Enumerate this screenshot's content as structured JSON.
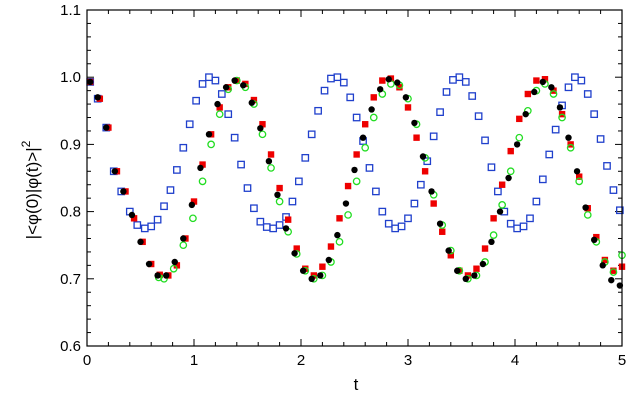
{
  "chart_data": {
    "type": "scatter",
    "title": "",
    "xlabel": "t",
    "ylabel": "|<φ(0)|φ(t)>|",
    "ylabel_superscript": "2",
    "xlim": [
      0,
      5
    ],
    "ylim": [
      0.6,
      1.1
    ],
    "xticks": [
      "0",
      "1",
      "2",
      "3",
      "4",
      "5"
    ],
    "yticks": [
      "0.6",
      "0.7",
      "0.8",
      "0.9",
      "1.0",
      "1.1"
    ],
    "grid": false,
    "legend": "none",
    "series": [
      {
        "marker": "filled-circle",
        "color": "#000000",
        "points": [
          [
            0.03,
            0.993
          ],
          [
            0.1,
            0.97
          ],
          [
            0.18,
            0.925
          ],
          [
            0.26,
            0.86
          ],
          [
            0.34,
            0.83
          ],
          [
            0.42,
            0.795
          ],
          [
            0.5,
            0.755
          ],
          [
            0.58,
            0.722
          ],
          [
            0.66,
            0.705
          ],
          [
            0.74,
            0.705
          ],
          [
            0.82,
            0.725
          ],
          [
            0.9,
            0.76
          ],
          [
            0.98,
            0.81
          ],
          [
            1.06,
            0.865
          ],
          [
            1.14,
            0.915
          ],
          [
            1.22,
            0.96
          ],
          [
            1.3,
            0.985
          ],
          [
            1.38,
            0.995
          ],
          [
            1.46,
            0.988
          ],
          [
            1.54,
            0.962
          ],
          [
            1.62,
            0.924
          ],
          [
            1.7,
            0.875
          ],
          [
            1.78,
            0.825
          ],
          [
            1.86,
            0.775
          ],
          [
            1.94,
            0.738
          ],
          [
            2.02,
            0.712
          ],
          [
            2.1,
            0.7
          ],
          [
            2.18,
            0.705
          ],
          [
            2.26,
            0.728
          ],
          [
            2.34,
            0.765
          ],
          [
            2.42,
            0.812
          ],
          [
            2.5,
            0.862
          ],
          [
            2.58,
            0.91
          ],
          [
            2.66,
            0.952
          ],
          [
            2.74,
            0.982
          ],
          [
            2.82,
            0.997
          ],
          [
            2.9,
            0.992
          ],
          [
            2.98,
            0.97
          ],
          [
            3.06,
            0.932
          ],
          [
            3.14,
            0.882
          ],
          [
            3.22,
            0.83
          ],
          [
            3.3,
            0.782
          ],
          [
            3.38,
            0.742
          ],
          [
            3.46,
            0.712
          ],
          [
            3.54,
            0.7
          ],
          [
            3.62,
            0.705
          ],
          [
            3.7,
            0.722
          ],
          [
            3.78,
            0.755
          ],
          [
            3.86,
            0.8
          ],
          [
            3.94,
            0.85
          ],
          [
            4.02,
            0.9
          ],
          [
            4.1,
            0.945
          ],
          [
            4.18,
            0.978
          ],
          [
            4.26,
            0.993
          ],
          [
            4.34,
            0.985
          ],
          [
            4.42,
            0.955
          ],
          [
            4.5,
            0.91
          ],
          [
            4.58,
            0.86
          ],
          [
            4.66,
            0.806
          ],
          [
            4.74,
            0.758
          ],
          [
            4.82,
            0.72
          ],
          [
            4.9,
            0.698
          ],
          [
            4.98,
            0.69
          ]
        ]
      },
      {
        "marker": "open-circle",
        "color": "#22dd22",
        "points": [
          [
            0.67,
            0.702
          ],
          [
            0.72,
            0.7
          ],
          [
            0.81,
            0.715
          ],
          [
            0.9,
            0.75
          ],
          [
            0.99,
            0.79
          ],
          [
            1.08,
            0.845
          ],
          [
            1.16,
            0.9
          ],
          [
            1.24,
            0.945
          ],
          [
            1.32,
            0.982
          ],
          [
            1.4,
            0.995
          ],
          [
            1.48,
            0.985
          ],
          [
            1.56,
            0.96
          ],
          [
            1.64,
            0.915
          ],
          [
            1.72,
            0.865
          ],
          [
            1.8,
            0.815
          ],
          [
            1.88,
            0.77
          ],
          [
            1.96,
            0.737
          ],
          [
            2.04,
            0.712
          ],
          [
            2.12,
            0.7
          ],
          [
            2.2,
            0.705
          ],
          [
            2.28,
            0.725
          ],
          [
            2.36,
            0.755
          ],
          [
            2.44,
            0.795
          ],
          [
            2.52,
            0.845
          ],
          [
            2.6,
            0.895
          ],
          [
            2.68,
            0.94
          ],
          [
            2.76,
            0.975
          ],
          [
            2.84,
            0.99
          ],
          [
            2.92,
            0.988
          ],
          [
            3.0,
            0.968
          ],
          [
            3.08,
            0.93
          ],
          [
            3.16,
            0.88
          ],
          [
            3.24,
            0.825
          ],
          [
            3.32,
            0.78
          ],
          [
            3.4,
            0.742
          ],
          [
            3.48,
            0.712
          ],
          [
            3.56,
            0.7
          ],
          [
            3.64,
            0.705
          ],
          [
            3.72,
            0.725
          ],
          [
            3.8,
            0.765
          ],
          [
            3.88,
            0.81
          ],
          [
            3.96,
            0.86
          ],
          [
            4.04,
            0.91
          ],
          [
            4.12,
            0.95
          ],
          [
            4.2,
            0.98
          ],
          [
            4.28,
            0.99
          ],
          [
            4.36,
            0.975
          ],
          [
            4.44,
            0.94
          ],
          [
            4.52,
            0.895
          ],
          [
            4.6,
            0.845
          ],
          [
            4.68,
            0.795
          ],
          [
            4.76,
            0.755
          ],
          [
            4.84,
            0.725
          ],
          [
            4.92,
            0.71
          ],
          [
            5.0,
            0.735
          ]
        ]
      },
      {
        "marker": "filled-square",
        "color": "#ee0000",
        "points": [
          [
            0.03,
            0.993
          ],
          [
            0.12,
            0.968
          ],
          [
            0.2,
            0.925
          ],
          [
            0.28,
            0.86
          ],
          [
            0.36,
            0.83
          ],
          [
            0.44,
            0.79
          ],
          [
            0.52,
            0.755
          ],
          [
            0.6,
            0.722
          ],
          [
            0.68,
            0.706
          ],
          [
            0.76,
            0.705
          ],
          [
            0.84,
            0.72
          ],
          [
            0.92,
            0.76
          ],
          [
            1.0,
            0.815
          ],
          [
            1.08,
            0.87
          ],
          [
            1.16,
            0.915
          ],
          [
            1.24,
            0.955
          ],
          [
            1.32,
            0.985
          ],
          [
            1.4,
            0.995
          ],
          [
            1.48,
            0.99
          ],
          [
            1.56,
            0.966
          ],
          [
            1.64,
            0.93
          ],
          [
            1.72,
            0.885
          ],
          [
            1.8,
            0.835
          ],
          [
            1.88,
            0.788
          ],
          [
            1.96,
            0.745
          ],
          [
            2.04,
            0.715
          ],
          [
            2.12,
            0.705
          ],
          [
            2.2,
            0.718
          ],
          [
            2.28,
            0.748
          ],
          [
            2.36,
            0.79
          ],
          [
            2.44,
            0.838
          ],
          [
            2.52,
            0.885
          ],
          [
            2.6,
            0.93
          ],
          [
            2.68,
            0.97
          ],
          [
            2.76,
            0.995
          ],
          [
            2.84,
            0.998
          ],
          [
            2.92,
            0.985
          ],
          [
            3.0,
            0.955
          ],
          [
            3.08,
            0.91
          ],
          [
            3.16,
            0.86
          ],
          [
            3.24,
            0.812
          ],
          [
            3.32,
            0.77
          ],
          [
            3.4,
            0.735
          ],
          [
            3.48,
            0.712
          ],
          [
            3.56,
            0.705
          ],
          [
            3.64,
            0.715
          ],
          [
            3.72,
            0.745
          ],
          [
            3.8,
            0.79
          ],
          [
            3.88,
            0.84
          ],
          [
            3.96,
            0.89
          ],
          [
            4.04,
            0.938
          ],
          [
            4.12,
            0.975
          ],
          [
            4.2,
            0.995
          ],
          [
            4.28,
            0.997
          ],
          [
            4.36,
            0.98
          ],
          [
            4.44,
            0.945
          ],
          [
            4.52,
            0.9
          ],
          [
            4.6,
            0.852
          ],
          [
            4.68,
            0.805
          ],
          [
            4.76,
            0.762
          ],
          [
            4.84,
            0.728
          ],
          [
            4.92,
            0.712
          ],
          [
            5.0,
            0.718
          ]
        ]
      },
      {
        "marker": "open-square",
        "color": "#2040cc",
        "points": [
          [
            0.03,
            0.993
          ],
          [
            0.1,
            0.968
          ],
          [
            0.18,
            0.925
          ],
          [
            0.25,
            0.86
          ],
          [
            0.32,
            0.83
          ],
          [
            0.4,
            0.8
          ],
          [
            0.47,
            0.78
          ],
          [
            0.54,
            0.775
          ],
          [
            0.6,
            0.778
          ],
          [
            0.66,
            0.788
          ],
          [
            0.72,
            0.808
          ],
          [
            0.78,
            0.832
          ],
          [
            0.84,
            0.862
          ],
          [
            0.9,
            0.895
          ],
          [
            0.96,
            0.93
          ],
          [
            1.02,
            0.965
          ],
          [
            1.08,
            0.99
          ],
          [
            1.14,
            1.0
          ],
          [
            1.2,
            0.995
          ],
          [
            1.26,
            0.975
          ],
          [
            1.32,
            0.945
          ],
          [
            1.38,
            0.91
          ],
          [
            1.44,
            0.87
          ],
          [
            1.5,
            0.835
          ],
          [
            1.56,
            0.805
          ],
          [
            1.62,
            0.785
          ],
          [
            1.68,
            0.777
          ],
          [
            1.74,
            0.775
          ],
          [
            1.8,
            0.78
          ],
          [
            1.86,
            0.792
          ],
          [
            1.92,
            0.815
          ],
          [
            1.98,
            0.845
          ],
          [
            2.04,
            0.88
          ],
          [
            2.1,
            0.915
          ],
          [
            2.16,
            0.95
          ],
          [
            2.22,
            0.98
          ],
          [
            2.28,
            0.998
          ],
          [
            2.34,
            1.0
          ],
          [
            2.4,
            0.992
          ],
          [
            2.46,
            0.97
          ],
          [
            2.52,
            0.94
          ],
          [
            2.58,
            0.905
          ],
          [
            2.64,
            0.865
          ],
          [
            2.7,
            0.83
          ],
          [
            2.76,
            0.8
          ],
          [
            2.82,
            0.782
          ],
          [
            2.88,
            0.775
          ],
          [
            2.94,
            0.778
          ],
          [
            3.0,
            0.79
          ],
          [
            3.06,
            0.812
          ],
          [
            3.12,
            0.84
          ],
          [
            3.18,
            0.875
          ],
          [
            3.24,
            0.912
          ],
          [
            3.3,
            0.948
          ],
          [
            3.36,
            0.978
          ],
          [
            3.42,
            0.996
          ],
          [
            3.48,
            1.0
          ],
          [
            3.54,
            0.993
          ],
          [
            3.6,
            0.972
          ],
          [
            3.66,
            0.942
          ],
          [
            3.72,
            0.906
          ],
          [
            3.78,
            0.866
          ],
          [
            3.84,
            0.83
          ],
          [
            3.9,
            0.8
          ],
          [
            3.96,
            0.782
          ],
          [
            4.02,
            0.775
          ],
          [
            4.08,
            0.778
          ],
          [
            4.14,
            0.79
          ],
          [
            4.2,
            0.815
          ],
          [
            4.26,
            0.848
          ],
          [
            4.32,
            0.885
          ],
          [
            4.38,
            0.922
          ],
          [
            4.44,
            0.958
          ],
          [
            4.5,
            0.985
          ],
          [
            4.56,
            1.0
          ],
          [
            4.62,
            0.995
          ],
          [
            4.68,
            0.975
          ],
          [
            4.74,
            0.945
          ],
          [
            4.8,
            0.908
          ],
          [
            4.86,
            0.868
          ],
          [
            4.92,
            0.832
          ],
          [
            4.98,
            0.802
          ]
        ]
      }
    ]
  }
}
